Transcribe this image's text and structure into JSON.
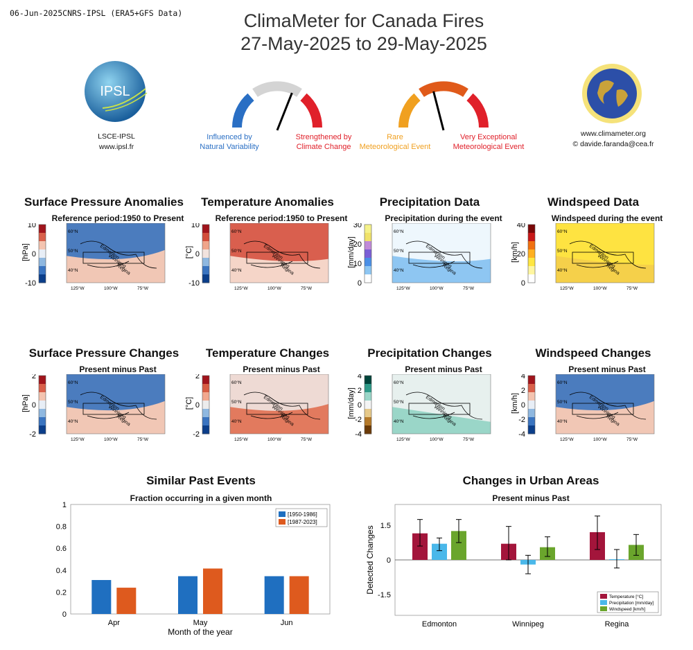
{
  "header": {
    "stamp": "06-Jun-2025CNRS-IPSL (ERA5+GFS Data)",
    "title_line1": "ClimaMeter for Canada Fires",
    "title_line2": "27-May-2025 to 29-May-2025"
  },
  "logos": {
    "ipsl_text": "IPSL",
    "ipsl_caption1": "LSCE-IPSL",
    "ipsl_caption2": "www.ipsl.fr",
    "climameter_caption1": "www.climameter.org",
    "climameter_caption2": "© davide.faranda@cea.fr"
  },
  "gauges": {
    "attribution": {
      "left_label1": "Influenced by",
      "left_label2": "Natural Variability",
      "right_label1": "Strengthened by",
      "right_label2": "Climate Change",
      "left_color": "#2a6fc4",
      "right_color": "#e0202a",
      "active_color": "#d4d4d4",
      "needle": 0.62
    },
    "rarity": {
      "left_label1": "Rare",
      "left_label2": "Meteorological Event",
      "right_label1": "Very Exceptional",
      "right_label2": "Meteorological Event",
      "left_color": "#f0a020",
      "right_color": "#e0202a",
      "active_color": "#e05a1a",
      "needle": 0.42
    }
  },
  "map_panels_row1": [
    {
      "title": "Surface Pressure Anomalies",
      "subtitle": "Reference period:1950 to Present",
      "unit": "[hPa]",
      "ticks": [
        "10",
        "0",
        "-10"
      ],
      "palette": "rb"
    },
    {
      "title": "Temperature Anomalies",
      "subtitle": "Reference period:1950 to Present",
      "unit": "[°C]",
      "ticks": [
        "10",
        "0",
        "-10"
      ],
      "palette": "rb_warm"
    },
    {
      "title": "Precipitation Data",
      "subtitle": "Precipitation during the event",
      "unit": "[mm/day]",
      "ticks": [
        "30",
        "20",
        "10",
        "0"
      ],
      "palette": "precip"
    },
    {
      "title": "Windspeed Data",
      "subtitle": "Windspeed during the event",
      "unit": "[km/h]",
      "ticks": [
        "40",
        "20",
        "0"
      ],
      "palette": "wind"
    }
  ],
  "map_panels_row2": [
    {
      "title": "Surface Pressure Changes",
      "subtitle": "Present minus Past",
      "unit": "[hPa]",
      "ticks": [
        "2",
        "0",
        "-2"
      ],
      "palette": "rb"
    },
    {
      "title": "Temperature Changes",
      "subtitle": "Present minus Past",
      "unit": "[°C]",
      "ticks": [
        "2",
        "0",
        "-2"
      ],
      "palette": "rb_warm2"
    },
    {
      "title": "Precipitation Changes",
      "subtitle": "Present minus Past",
      "unit": "[mm/day]",
      "ticks": [
        "4",
        "2",
        "0",
        "-2",
        "-4"
      ],
      "palette": "brbg"
    },
    {
      "title": "Windspeed Changes",
      "subtitle": "Present minus Past",
      "unit": "[km/h]",
      "ticks": [
        "4",
        "2",
        "0",
        "-2",
        "-4"
      ],
      "palette": "rb"
    }
  ],
  "map_common": {
    "lat_labels": [
      "60°N",
      "50°N",
      "40°N"
    ],
    "lon_labels": [
      "125°W",
      "100°W",
      "75°W"
    ],
    "cities": [
      "Edmonton",
      "Winnipeg",
      "Regina"
    ]
  },
  "chart_data": [
    {
      "type": "bar",
      "title": "Similar Past Events",
      "subtitle": "Fraction occurring in a given month",
      "xlabel": "Month of the year",
      "ylabel": "",
      "categories": [
        "Apr",
        "May",
        "Jun"
      ],
      "series": [
        {
          "name": "[1950-1986]",
          "values": [
            0.31,
            0.345,
            0.345
          ],
          "color": "#1f6fc0"
        },
        {
          "name": "[1987-2023]",
          "values": [
            0.24,
            0.415,
            0.345
          ],
          "color": "#de5a1e"
        }
      ],
      "ylim": [
        0,
        1
      ],
      "yticks": [
        "0",
        "0.2",
        "0.4",
        "0.6",
        "0.8",
        "1"
      ],
      "legend": "top-right",
      "grid": false
    },
    {
      "type": "bar",
      "title": "Changes in Urban Areas",
      "subtitle": "Present minus Past",
      "xlabel": "",
      "ylabel": "Detected Changes",
      "categories": [
        "Edmonton",
        "Winnipeg",
        "Regina"
      ],
      "series": [
        {
          "name": "Temperature [°C]",
          "values": [
            1.15,
            0.7,
            1.2
          ],
          "err_low": [
            0.6,
            0.0,
            0.45
          ],
          "err_high": [
            1.75,
            1.45,
            1.9
          ],
          "color": "#a3153b"
        },
        {
          "name": "Precipitation [mm/day]",
          "values": [
            0.7,
            -0.2,
            0.03
          ],
          "err_low": [
            0.4,
            -0.6,
            -0.35
          ],
          "err_high": [
            0.95,
            0.2,
            0.45
          ],
          "color": "#4ab8ea"
        },
        {
          "name": "Windspeed [km/h]",
          "values": [
            1.25,
            0.55,
            0.65
          ],
          "err_low": [
            0.75,
            0.15,
            0.2
          ],
          "err_high": [
            1.75,
            1.0,
            1.1
          ],
          "color": "#6aa52c"
        }
      ],
      "ylim": [
        -2.4,
        2.4
      ],
      "yticks": [
        "1.5",
        "0",
        "-1.5"
      ],
      "legend": "bottom-right",
      "grid": false
    }
  ]
}
